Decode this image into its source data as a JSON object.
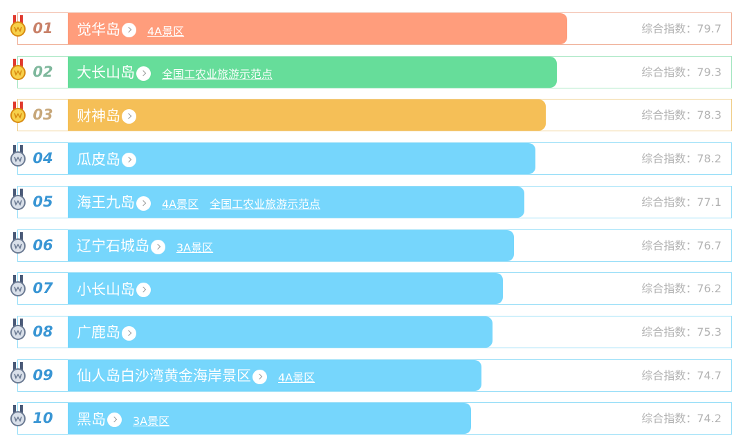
{
  "colors": {
    "rank1_bar": "#ff9d7c",
    "rank1_border": "#f0b29b",
    "rank1_text": "#c9826a",
    "rank2_bar": "#66dd9a",
    "rank2_border": "#a6e6c2",
    "rank2_text": "#7fb89d",
    "rank3_bar": "#f5bf57",
    "rank3_border": "#f0cf8c",
    "rank3_text": "#c7a77a",
    "other_bar": "#76d6fc",
    "other_border": "#9adff8",
    "other_text": "#3a96d4",
    "gold_medal": "#f5c020",
    "silver_medal": "#9aa7b8"
  },
  "score_label": "综合指数：",
  "items": [
    {
      "rank": "01",
      "name": "觉华岛",
      "tags": [
        "4A景区"
      ],
      "score": "79.7",
      "bar_fraction": 0.7,
      "medal": "gold-medal-icon"
    },
    {
      "rank": "02",
      "name": "大长山岛",
      "tags": [
        "全国工农业旅游示范点"
      ],
      "score": "79.3",
      "bar_fraction": 0.685,
      "medal": "gold-medal-icon"
    },
    {
      "rank": "03",
      "name": "财神岛",
      "tags": [],
      "score": "78.3",
      "bar_fraction": 0.67,
      "medal": "gold-medal-icon"
    },
    {
      "rank": "04",
      "name": "瓜皮岛",
      "tags": [],
      "score": "78.2",
      "bar_fraction": 0.655,
      "medal": "silver-medal-icon"
    },
    {
      "rank": "05",
      "name": "海王九岛",
      "tags": [
        "4A景区",
        "全国工农业旅游示范点"
      ],
      "score": "77.1",
      "bar_fraction": 0.64,
      "medal": "silver-medal-icon"
    },
    {
      "rank": "06",
      "name": "辽宁石城岛",
      "tags": [
        "3A景区"
      ],
      "score": "76.7",
      "bar_fraction": 0.625,
      "medal": "silver-medal-icon"
    },
    {
      "rank": "07",
      "name": "小长山岛",
      "tags": [],
      "score": "76.2",
      "bar_fraction": 0.61,
      "medal": "silver-medal-icon"
    },
    {
      "rank": "08",
      "name": "广鹿岛",
      "tags": [],
      "score": "75.3",
      "bar_fraction": 0.595,
      "medal": "silver-medal-icon"
    },
    {
      "rank": "09",
      "name": "仙人岛白沙湾黄金海岸景区",
      "tags": [
        "4A景区"
      ],
      "score": "74.7",
      "bar_fraction": 0.58,
      "medal": "silver-medal-icon"
    },
    {
      "rank": "10",
      "name": "黑岛",
      "tags": [
        "3A景区"
      ],
      "score": "74.2",
      "bar_fraction": 0.565,
      "medal": "silver-medal-icon"
    }
  ]
}
